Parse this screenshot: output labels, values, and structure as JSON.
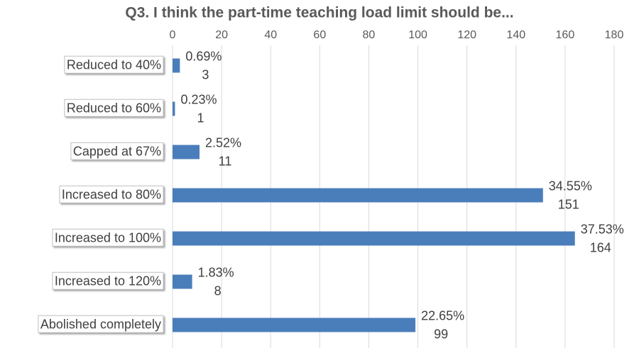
{
  "chart_data": {
    "type": "bar",
    "orientation": "horizontal",
    "title": "Q3. I think the part-time teaching load limit should be...",
    "categories": [
      "Reduced to 40%",
      "Reduced to 60%",
      "Capped at 67%",
      "Increased to 80%",
      "Increased to 100%",
      "Increased to 120%",
      "Abolished completely"
    ],
    "values": [
      3,
      1,
      11,
      151,
      164,
      8,
      99
    ],
    "percent_values": [
      0.69,
      0.23,
      2.52,
      34.55,
      37.53,
      1.83,
      22.65
    ],
    "percent_labels": [
      "0.69%",
      "0.23%",
      "2.52%",
      "34.55%",
      "37.53%",
      "1.83%",
      "22.65%"
    ],
    "color": "#4a7ebb",
    "xlim": [
      0,
      180
    ],
    "xticks": [
      0,
      20,
      40,
      60,
      80,
      100,
      120,
      140,
      160,
      180
    ],
    "grid": true
  }
}
